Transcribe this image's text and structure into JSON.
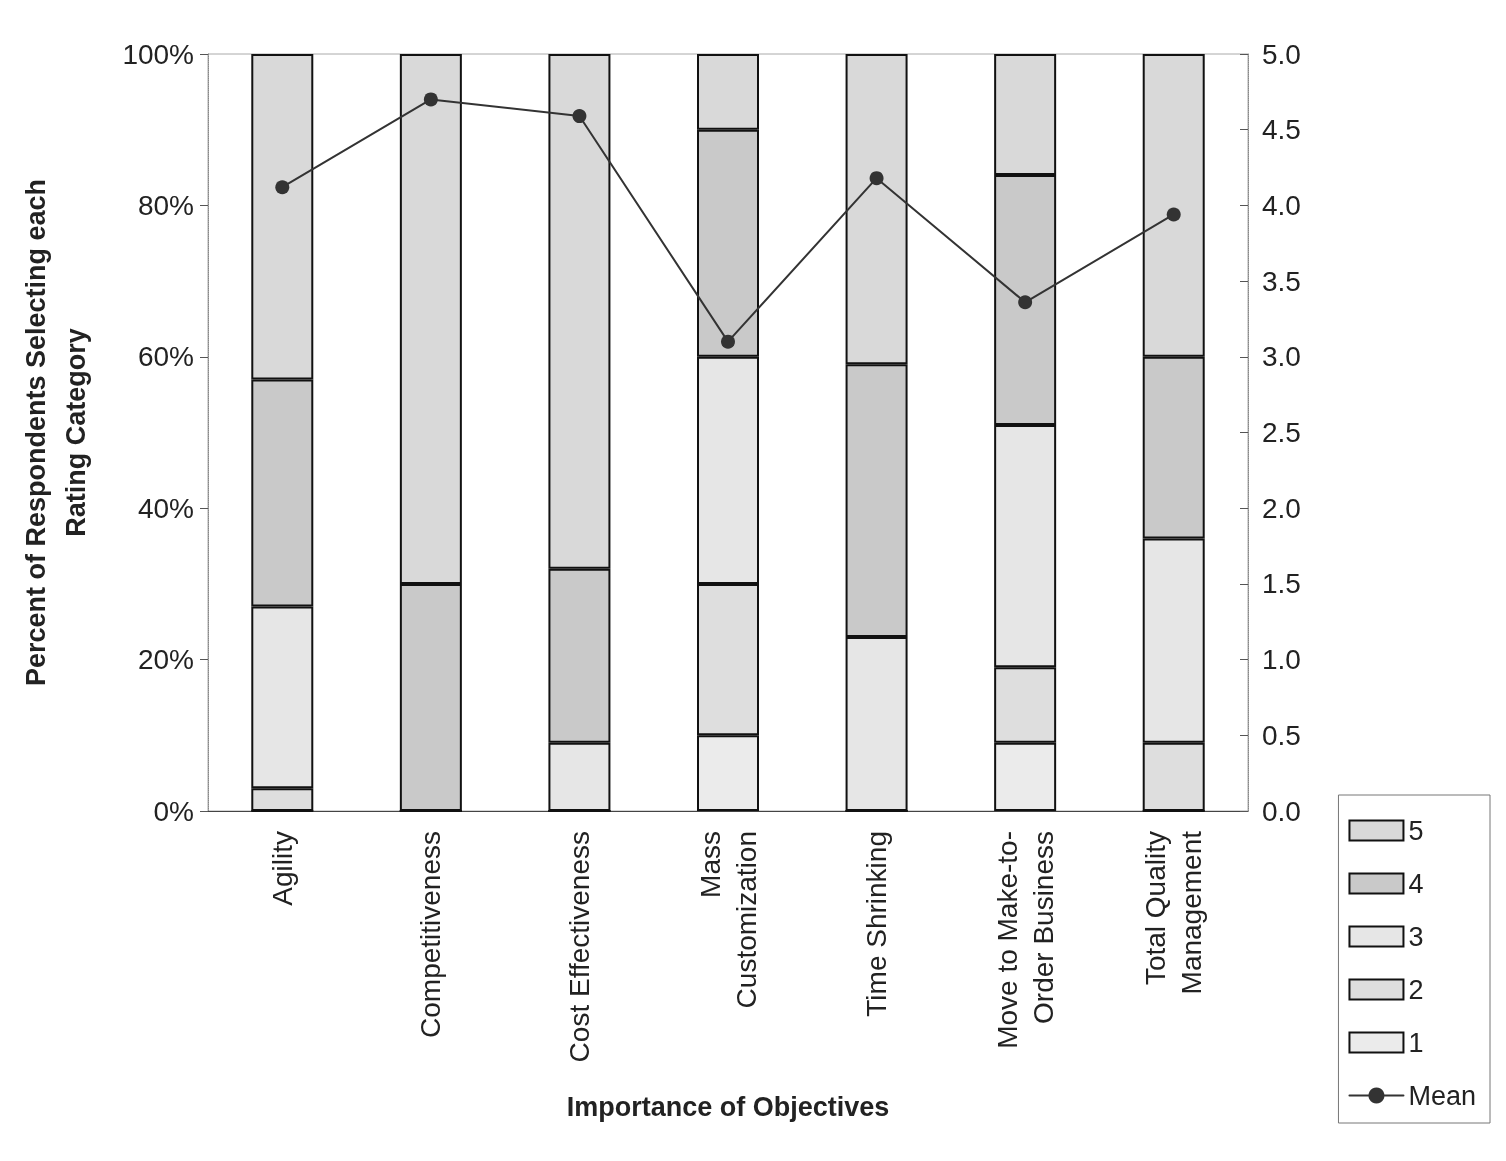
{
  "chart_data": {
    "type": "bar",
    "stacked": true,
    "xlabel": "Importance of Objectives",
    "ylabel": "Percent of Respondents Selecting each Rating Category",
    "categories": [
      "Agility",
      "Competitiveness",
      "Cost Effectiveness",
      "Mass Customization",
      "Time Shrinking",
      "Move to Make-to-Order Business",
      "Total Quality Management"
    ],
    "series": [
      {
        "name": "1",
        "color": "#ebebeb",
        "values": [
          0,
          0,
          0,
          10,
          0,
          9,
          0
        ]
      },
      {
        "name": "2",
        "color": "#dedede",
        "values": [
          3,
          0,
          0,
          20,
          0,
          10,
          9
        ]
      },
      {
        "name": "3",
        "color": "#e6e6e6",
        "values": [
          24,
          0,
          9,
          30,
          23,
          32,
          27
        ]
      },
      {
        "name": "4",
        "color": "#c9c9c9",
        "values": [
          30,
          30,
          23,
          30,
          36,
          33,
          24
        ]
      },
      {
        "name": "5",
        "color": "#d9d9d9",
        "values": [
          43,
          70,
          68,
          10,
          41,
          16,
          40
        ]
      },
      {
        "name": "Mean",
        "type": "line",
        "axis": "y2",
        "color": "#333333",
        "marker": "circle",
        "line_style": "solid",
        "values": [
          4.12,
          4.7,
          4.59,
          3.1,
          4.18,
          3.36,
          3.94
        ]
      }
    ],
    "ylim": [
      0,
      100
    ],
    "yticks": [
      {
        "value": 0,
        "label": "0%"
      },
      {
        "value": 20,
        "label": "20%"
      },
      {
        "value": 40,
        "label": "40%"
      },
      {
        "value": 60,
        "label": "60%"
      },
      {
        "value": 80,
        "label": "80%"
      },
      {
        "value": 100,
        "label": "100%"
      }
    ],
    "y2lim": [
      0,
      5
    ],
    "y2ticks": [
      {
        "value": 0,
        "label": "0.0"
      },
      {
        "value": 0.5,
        "label": "0.5"
      },
      {
        "value": 1,
        "label": "1.0"
      },
      {
        "value": 1.5,
        "label": "1.5"
      },
      {
        "value": 2,
        "label": "2.0"
      },
      {
        "value": 2.5,
        "label": "2.5"
      },
      {
        "value": 3,
        "label": "3.0"
      },
      {
        "value": 3.5,
        "label": "3.5"
      },
      {
        "value": 4,
        "label": "4.0"
      },
      {
        "value": 4.5,
        "label": "4.5"
      },
      {
        "value": 5,
        "label": "5.0"
      }
    ],
    "grid": false,
    "legend": "bottom right"
  }
}
